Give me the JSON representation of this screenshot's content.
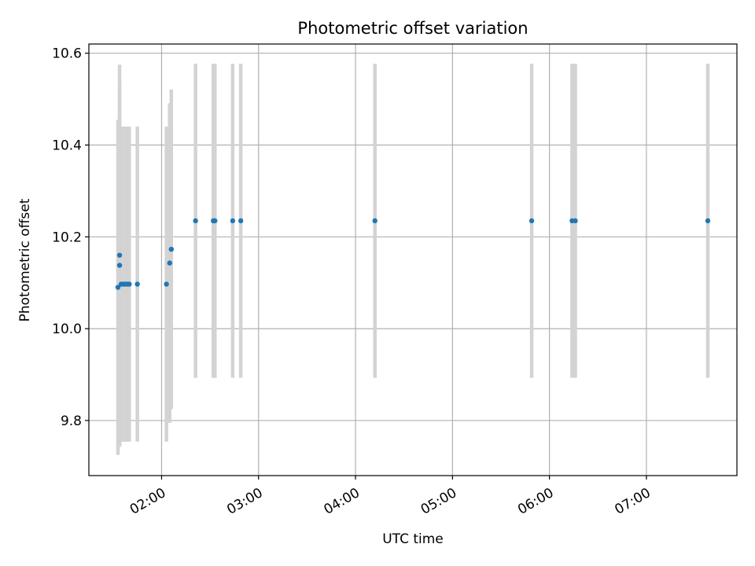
{
  "chart_data": {
    "type": "scatter",
    "title": "Photometric offset variation",
    "xlabel": "UTC time",
    "ylabel": "Photometric offset",
    "x_axis_type": "time",
    "xlim": [
      "01:15",
      "07:56"
    ],
    "ylim": [
      9.68,
      10.62
    ],
    "x_ticks": [
      "02:00",
      "03:00",
      "04:00",
      "05:00",
      "06:00",
      "07:00"
    ],
    "y_ticks": [
      9.8,
      10.0,
      10.2,
      10.4,
      10.6
    ],
    "y_tick_labels": [
      "9.8",
      "10.0",
      "10.2",
      "10.4",
      "10.6"
    ],
    "grid": true,
    "legend": "none",
    "colors": {
      "points": "#1f77b4",
      "errorbars": "#d3d3d3",
      "grid": "#b0b0b0"
    },
    "series": [
      {
        "points": [
          {
            "x": "01:33",
            "y": 10.09,
            "err": 0.365
          },
          {
            "x": "01:34",
            "y": 10.16,
            "err": 0.415
          },
          {
            "x": "01:34",
            "y": 10.138,
            "err": 0.395
          },
          {
            "x": "01:35",
            "y": 10.097,
            "err": 0.343
          },
          {
            "x": "01:36",
            "y": 10.097,
            "err": 0.343
          },
          {
            "x": "01:37",
            "y": 10.097,
            "err": 0.343
          },
          {
            "x": "01:38",
            "y": 10.097,
            "err": 0.343
          },
          {
            "x": "01:39",
            "y": 10.097,
            "err": 0.343
          },
          {
            "x": "01:40",
            "y": 10.097,
            "err": 0.343
          },
          {
            "x": "01:45",
            "y": 10.097,
            "err": 0.343
          },
          {
            "x": "02:03",
            "y": 10.097,
            "err": 0.343
          },
          {
            "x": "02:05",
            "y": 10.143,
            "err": 0.348
          },
          {
            "x": "02:06",
            "y": 10.173,
            "err": 0.348
          },
          {
            "x": "02:21",
            "y": 10.235,
            "err": 0.342
          },
          {
            "x": "02:32",
            "y": 10.235,
            "err": 0.342
          },
          {
            "x": "02:33",
            "y": 10.235,
            "err": 0.342
          },
          {
            "x": "02:44",
            "y": 10.235,
            "err": 0.342
          },
          {
            "x": "02:49",
            "y": 10.235,
            "err": 0.342
          },
          {
            "x": "04:12",
            "y": 10.235,
            "err": 0.342
          },
          {
            "x": "05:49",
            "y": 10.235,
            "err": 0.342
          },
          {
            "x": "06:14",
            "y": 10.235,
            "err": 0.342
          },
          {
            "x": "06:16",
            "y": 10.235,
            "err": 0.342
          },
          {
            "x": "07:38",
            "y": 10.235,
            "err": 0.342
          }
        ]
      }
    ]
  }
}
